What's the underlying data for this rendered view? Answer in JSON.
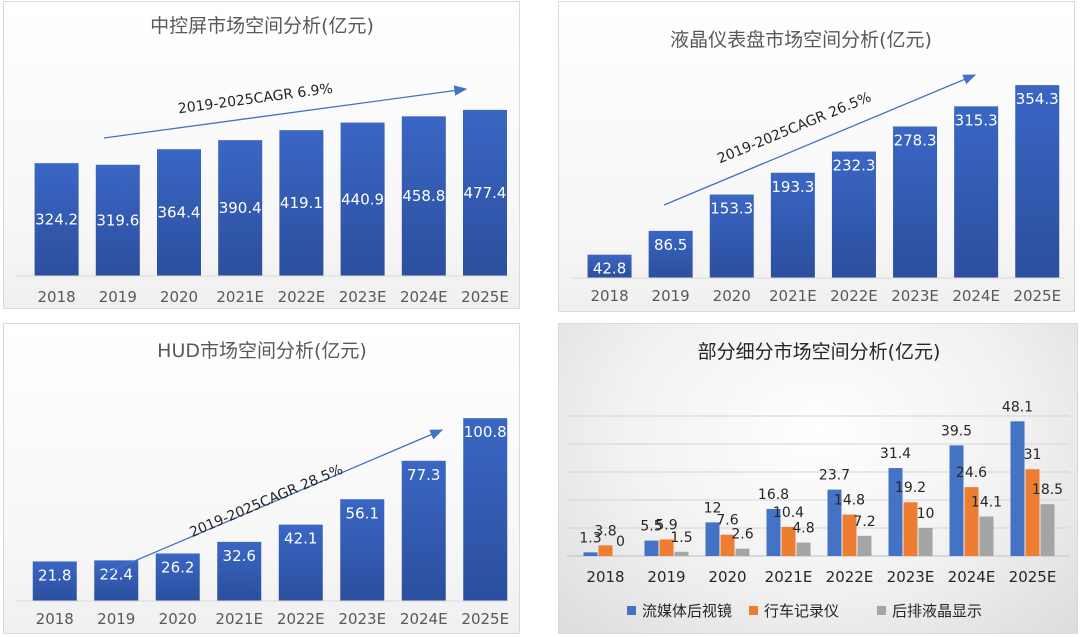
{
  "colors": {
    "bar_blue": "#4472c4",
    "orange": "#ed7d31",
    "gray": "#a5a5a5",
    "arrow": "#4472c4"
  },
  "chart_data": [
    {
      "type": "bar",
      "title": "中控屏市场空间分析(亿元)",
      "categories": [
        "2018",
        "2019",
        "2020",
        "2021E",
        "2022E",
        "2023E",
        "2024E",
        "2025E"
      ],
      "values": [
        324.2,
        319.6,
        364.4,
        390.4,
        419.1,
        440.9,
        458.8,
        477.4
      ],
      "value_labels": [
        "324.2",
        "319.6",
        "364.4",
        "390.4",
        "419.1",
        "440.9",
        "458.8",
        "477.4"
      ],
      "annotation": "2019-2025CAGR 6.9%",
      "ylim": [
        0,
        500
      ],
      "grid": false,
      "legend": "none"
    },
    {
      "type": "bar",
      "title": "液晶仪表盘市场空间分析(亿元)",
      "categories": [
        "2018",
        "2019",
        "2020",
        "2021E",
        "2022E",
        "2023E",
        "2024E",
        "2025E"
      ],
      "values": [
        42.8,
        86.5,
        153.3,
        193.3,
        232.3,
        278.3,
        315.3,
        354.3
      ],
      "value_labels": [
        "42.8",
        "86.5",
        "153.3",
        "193.3",
        "232.3",
        "278.3",
        "315.3",
        "354.3"
      ],
      "annotation": "2019-2025CAGR 26.5%",
      "ylim": [
        0,
        360
      ],
      "grid": false,
      "legend": "none"
    },
    {
      "type": "bar",
      "title": "HUD市场空间分析(亿元)",
      "categories": [
        "2018",
        "2019",
        "2020",
        "2021E",
        "2022E",
        "2023E",
        "2024E",
        "2025E"
      ],
      "values": [
        21.8,
        22.4,
        26.2,
        32.6,
        42.1,
        56.1,
        77.3,
        100.8
      ],
      "value_labels": [
        "21.8",
        "22.4",
        "26.2",
        "32.6",
        "42.1",
        "56.1",
        "77.3",
        "100.8"
      ],
      "annotation": "2019-2025CAGR 28.5%",
      "ylim": [
        0,
        102
      ],
      "grid": false,
      "legend": "none"
    },
    {
      "type": "bar",
      "title": "部分细分市场空间分析(亿元)",
      "categories": [
        "2018",
        "2019",
        "2020",
        "2021E",
        "2022E",
        "2023E",
        "2024E",
        "2025E"
      ],
      "series": [
        {
          "name": "流媒体后视镜",
          "values": [
            1.3,
            5.5,
            12,
            16.8,
            23.7,
            31.4,
            39.5,
            48.1
          ],
          "labels": [
            "1.3",
            "5.5",
            "12",
            "16.8",
            "23.7",
            "31.4",
            "39.5",
            "48.1"
          ]
        },
        {
          "name": "行车记录仪",
          "values": [
            3.8,
            5.9,
            7.6,
            10.4,
            14.8,
            19.2,
            24.6,
            31
          ],
          "labels": [
            "3.8",
            "5.9",
            "7.6",
            "10.4",
            "14.8",
            "19.2",
            "24.6",
            "31"
          ]
        },
        {
          "name": "后排液晶显示",
          "values": [
            0,
            1.5,
            2.6,
            4.8,
            7.2,
            10,
            14.1,
            18.5
          ],
          "labels": [
            "0",
            "1.5",
            "2.6",
            "4.8",
            "7.2",
            "10",
            "14.1",
            "18.5"
          ]
        }
      ],
      "ylim": [
        0,
        50
      ],
      "grid": true,
      "legend": "bottom"
    }
  ]
}
